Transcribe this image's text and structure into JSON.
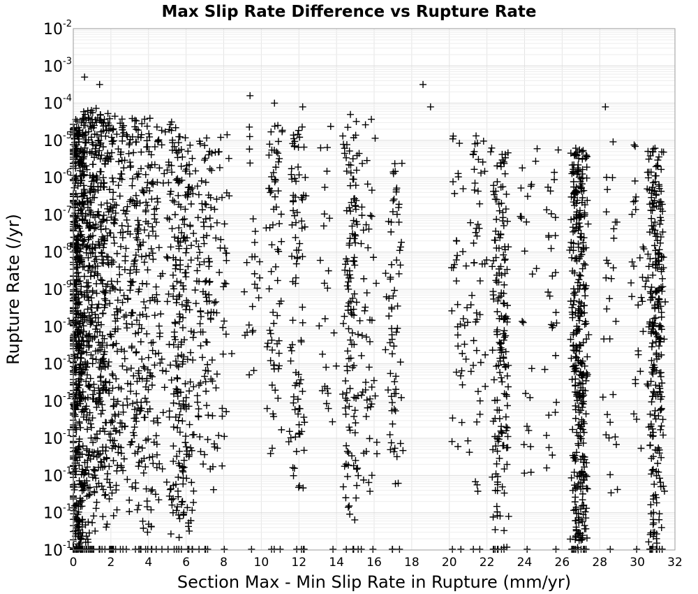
{
  "chart_data": {
    "type": "scatter",
    "title": "Max Slip Rate Difference vs Rupture Rate",
    "xlabel": "Section Max - Min Slip Rate in Rupture (mm/yr)",
    "ylabel": "Rupture Rate (/yr)",
    "xlim": [
      0,
      32
    ],
    "ylim": [
      1e-16,
      0.01
    ],
    "yscale": "log",
    "grid": true,
    "marker": "+",
    "marker_color": "#000000",
    "x_ticks": [
      "0",
      "2",
      "4",
      "6",
      "8",
      "10",
      "12",
      "14",
      "16",
      "18",
      "20",
      "22",
      "24",
      "26",
      "28",
      "30",
      "32"
    ],
    "y_ticks": [
      {
        "base": "10",
        "exp": "-16"
      },
      {
        "base": "10",
        "exp": "-15"
      },
      {
        "base": "10",
        "exp": "-14"
      },
      {
        "base": "10",
        "exp": "-13"
      },
      {
        "base": "10",
        "exp": "-12"
      },
      {
        "base": "10",
        "exp": "-11"
      },
      {
        "base": "10",
        "exp": "-10"
      },
      {
        "base": "10",
        "exp": "-9"
      },
      {
        "base": "10",
        "exp": "-8"
      },
      {
        "base": "10",
        "exp": "-7"
      },
      {
        "base": "10",
        "exp": "-6"
      },
      {
        "base": "10",
        "exp": "-5"
      },
      {
        "base": "10",
        "exp": "-4"
      },
      {
        "base": "10",
        "exp": "-3"
      },
      {
        "base": "10",
        "exp": "-2"
      }
    ],
    "clusters": [
      {
        "x": 0.1,
        "y_min_exp": -16,
        "y_max_exp": -4.5,
        "count": 340
      },
      {
        "x": 0.4,
        "y_min_exp": -16,
        "y_max_exp": -4.3,
        "count": 240
      },
      {
        "x": 0.8,
        "y_min_exp": -15.8,
        "y_max_exp": -4.2,
        "count": 180
      },
      {
        "x": 1.3,
        "y_min_exp": -15.5,
        "y_max_exp": -4.1,
        "count": 170
      },
      {
        "x": 1.8,
        "y_min_exp": -15.2,
        "y_max_exp": -4.2,
        "count": 130
      },
      {
        "x": 2.4,
        "y_min_exp": -15,
        "y_max_exp": -4.3,
        "count": 120
      },
      {
        "x": 3.2,
        "y_min_exp": -15,
        "y_max_exp": -4.2,
        "count": 110
      },
      {
        "x": 3.8,
        "y_min_exp": -15.6,
        "y_max_exp": -4.4,
        "count": 110
      },
      {
        "x": 4.5,
        "y_min_exp": -15,
        "y_max_exp": -4.5,
        "count": 70
      },
      {
        "x": 5.4,
        "y_min_exp": -15.8,
        "y_max_exp": -4.3,
        "count": 130
      },
      {
        "x": 6.0,
        "y_min_exp": -15.6,
        "y_max_exp": -4.8,
        "count": 110
      },
      {
        "x": 6.8,
        "y_min_exp": -14.5,
        "y_max_exp": -4.9,
        "count": 70
      },
      {
        "x": 7.4,
        "y_min_exp": -14.5,
        "y_max_exp": -5,
        "count": 50
      },
      {
        "x": 8.0,
        "y_min_exp": -13.5,
        "y_max_exp": -4.8,
        "count": 30
      },
      {
        "x": 9.5,
        "y_min_exp": -12,
        "y_max_exp": -4.5,
        "count": 25
      },
      {
        "x": 10.7,
        "y_min_exp": -13.5,
        "y_max_exp": -4.5,
        "count": 70
      },
      {
        "x": 11.9,
        "y_min_exp": -14.5,
        "y_max_exp": -4.6,
        "count": 90
      },
      {
        "x": 13.5,
        "y_min_exp": -13.5,
        "y_max_exp": -4.5,
        "count": 25
      },
      {
        "x": 14.8,
        "y_min_exp": -15.2,
        "y_max_exp": -4.2,
        "count": 130
      },
      {
        "x": 15.7,
        "y_min_exp": -14.5,
        "y_max_exp": -4.2,
        "count": 50
      },
      {
        "x": 17.1,
        "y_min_exp": -15,
        "y_max_exp": -5.5,
        "count": 70
      },
      {
        "x": 20.5,
        "y_min_exp": -13.5,
        "y_max_exp": -4.8,
        "count": 40
      },
      {
        "x": 21.5,
        "y_min_exp": -14.5,
        "y_max_exp": -4.6,
        "count": 50
      },
      {
        "x": 22.7,
        "y_min_exp": -16,
        "y_max_exp": -5.2,
        "count": 170
      },
      {
        "x": 24.2,
        "y_min_exp": -14,
        "y_max_exp": -5.2,
        "count": 25
      },
      {
        "x": 25.4,
        "y_min_exp": -14.6,
        "y_max_exp": -5,
        "count": 30
      },
      {
        "x": 26.9,
        "y_min_exp": -16,
        "y_max_exp": -5.2,
        "count": 360
      },
      {
        "x": 28.6,
        "y_min_exp": -14.5,
        "y_max_exp": -5,
        "count": 30
      },
      {
        "x": 30.0,
        "y_min_exp": -13.5,
        "y_max_exp": -5,
        "count": 30
      },
      {
        "x": 31.0,
        "y_min_exp": -16,
        "y_max_exp": -5.1,
        "count": 260
      }
    ],
    "outliers": [
      {
        "x": 0.6,
        "y_exp": -3.3
      },
      {
        "x": 1.4,
        "y_exp": -3.5
      },
      {
        "x": 9.4,
        "y_exp": -3.8
      },
      {
        "x": 18.6,
        "y_exp": -3.5
      },
      {
        "x": 28.3,
        "y_exp": -4.1
      },
      {
        "x": 19.0,
        "y_exp": -4.1
      },
      {
        "x": 10.7,
        "y_exp": -4.0
      },
      {
        "x": 12.2,
        "y_exp": -4.1
      }
    ]
  }
}
